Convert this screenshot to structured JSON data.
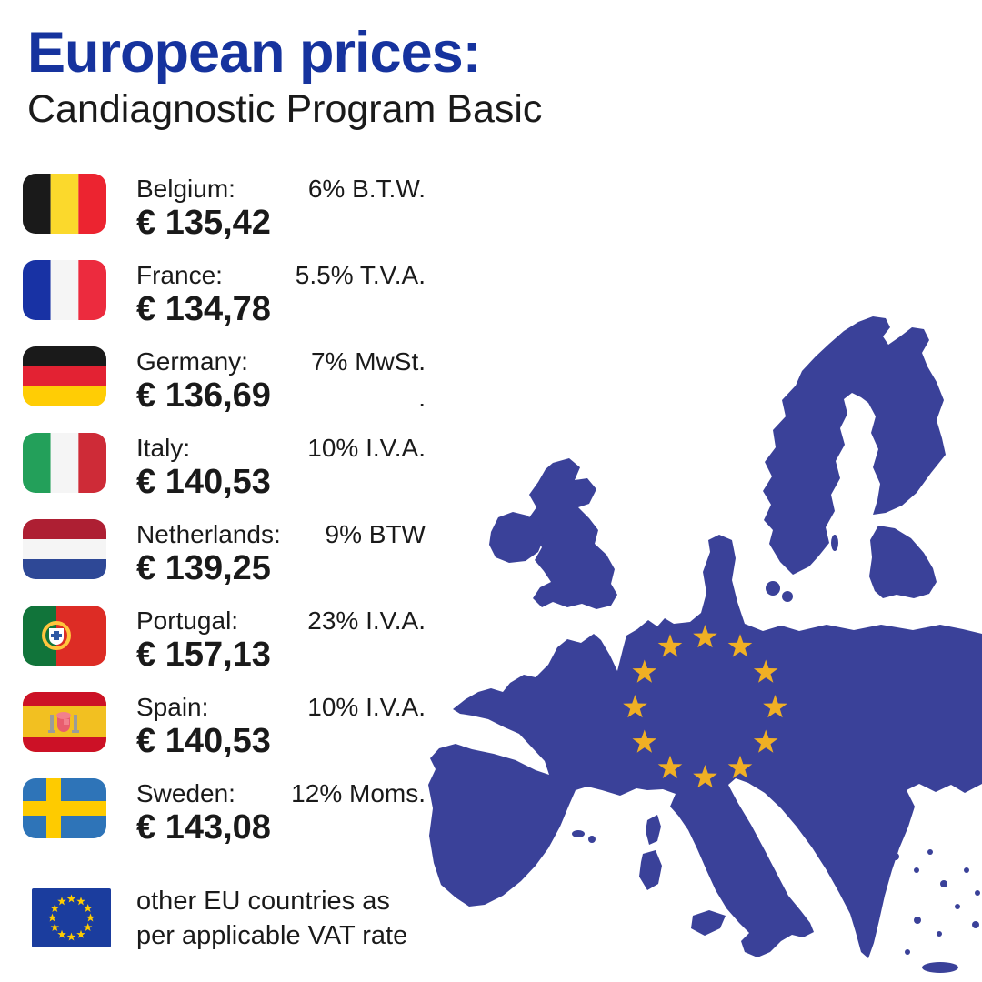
{
  "header": {
    "title": "European prices:",
    "subtitle": "Candiagnostic Program Basic",
    "title_color": "#16339E"
  },
  "countries": [
    {
      "id": "belgium",
      "name": "Belgium:",
      "vat": "6% B.T.W.",
      "price": "€ 135,42",
      "flag": {
        "type": "vertical",
        "colors": [
          "#1A1A1A",
          "#FBD92C",
          "#EC2430"
        ]
      }
    },
    {
      "id": "france",
      "name": "France:",
      "vat": "5.5% T.V.A.",
      "price": "€ 134,78",
      "flag": {
        "type": "vertical",
        "colors": [
          "#1832A4",
          "#F5F5F5",
          "#EC2B3E"
        ]
      }
    },
    {
      "id": "germany",
      "name": "Germany:",
      "vat": "7% MwSt.",
      "vat2": ".",
      "price": "€ 136,69",
      "flag": {
        "type": "horizontal",
        "colors": [
          "#1A1A1A",
          "#E32233",
          "#FFCD05"
        ]
      }
    },
    {
      "id": "italy",
      "name": "Italy:",
      "vat": "10% I.V.A.",
      "price": "€ 140,53",
      "flag": {
        "type": "vertical",
        "colors": [
          "#23A05A",
          "#F5F5F5",
          "#CE2B37"
        ]
      }
    },
    {
      "id": "netherlands",
      "name": "Netherlands:",
      "vat": "9% BTW",
      "price": "€ 139,25",
      "flag": {
        "type": "horizontal",
        "colors": [
          "#AE1F33",
          "#F5F5F5",
          "#2E4896"
        ]
      }
    },
    {
      "id": "portugal",
      "name": "Portugal:",
      "vat": "23% I.V.A.",
      "price": "€ 157,13",
      "flag": {
        "type": "portugal",
        "colors": [
          "#11743A",
          "#DD2C25",
          "#FFC53D",
          "#FFFFFF",
          "#2E59A3"
        ]
      }
    },
    {
      "id": "spain",
      "name": "Spain:",
      "vat": "10% I.V.A.",
      "price": "€ 140,53",
      "flag": {
        "type": "spain",
        "colors": [
          "#CC1126",
          "#F2C021",
          "#9B9B9B",
          "#E85D6E",
          "#F2808C"
        ]
      }
    },
    {
      "id": "sweden",
      "name": "Sweden:",
      "vat": "12% Moms.",
      "price": "€ 143,08",
      "flag": {
        "type": "nordic",
        "colors": [
          "#2E74B8",
          "#FECB00"
        ]
      }
    }
  ],
  "footer": {
    "note_line1": "other EU countries as",
    "note_line2": "per applicable VAT rate",
    "flag": {
      "type": "eu",
      "colors": [
        "#1B3D9E",
        "#FFCC00"
      ]
    }
  },
  "map": {
    "fill": "#3A4199",
    "star_color": "#F0AF24",
    "star_count": 12
  }
}
